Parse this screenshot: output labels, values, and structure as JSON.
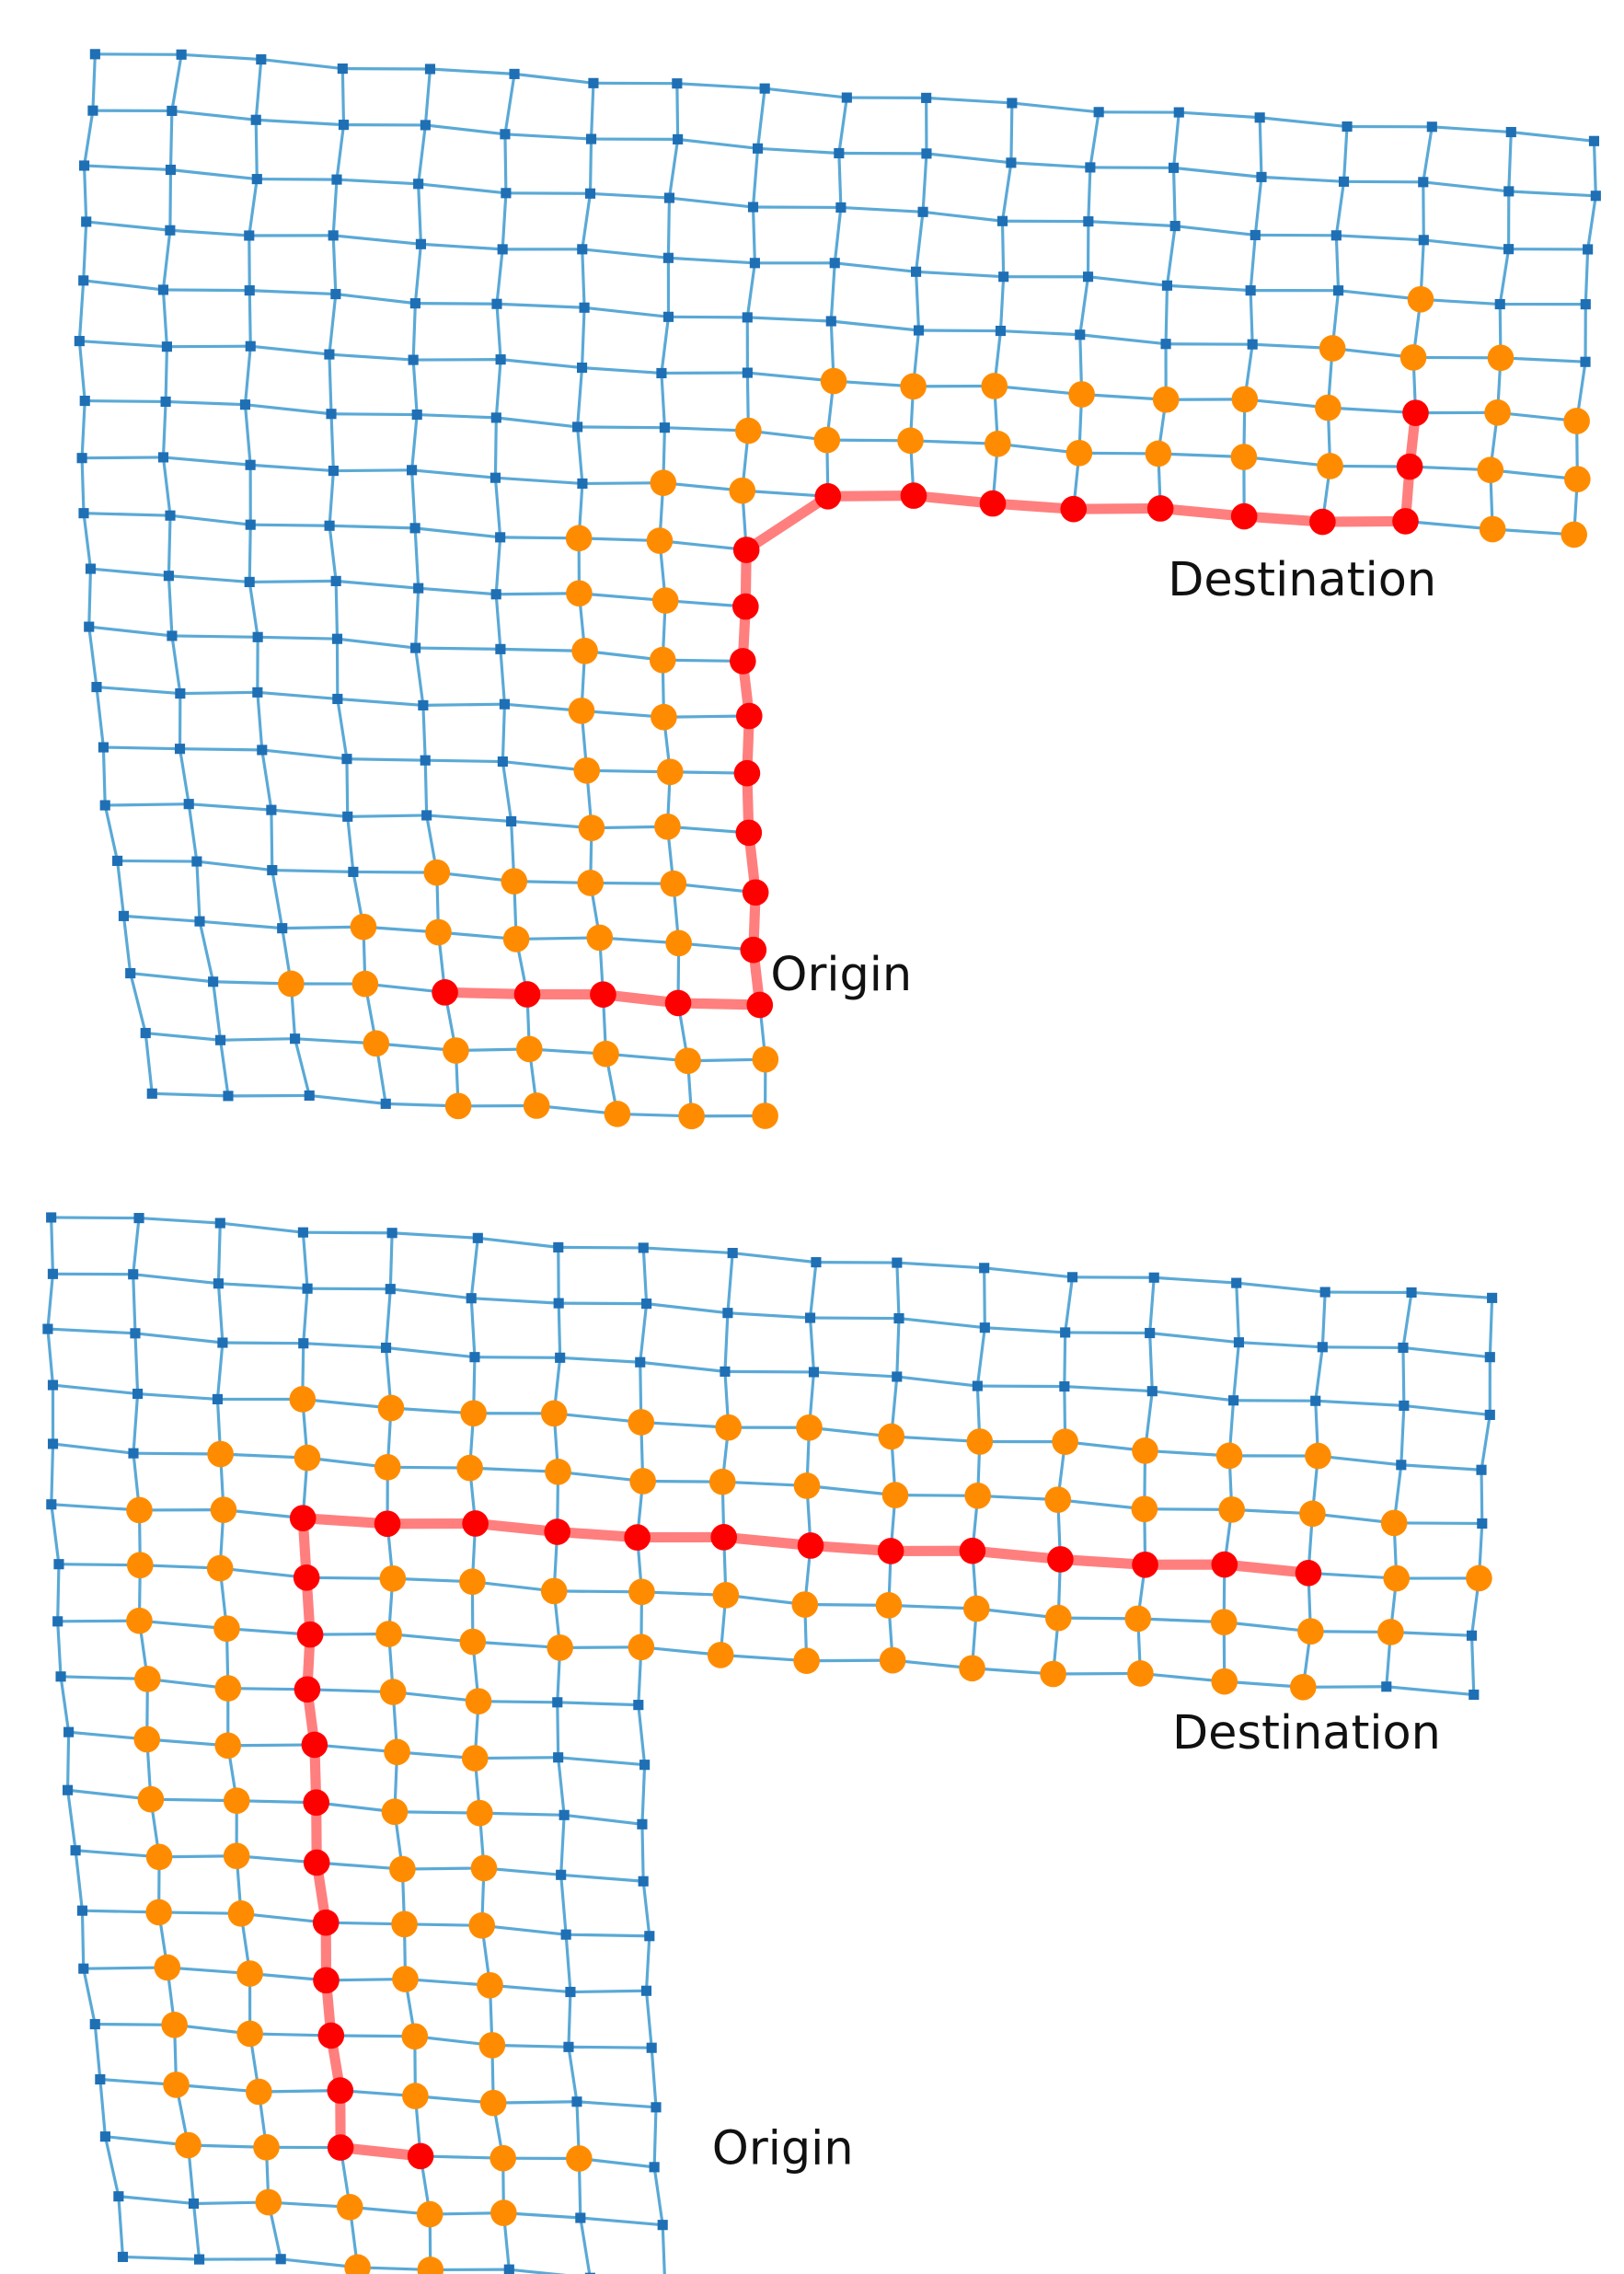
{
  "panels": [
    {
      "destination_label": "Destination",
      "origin_label": "Origin"
    },
    {
      "destination_label": "Destination",
      "origin_label": "Origin"
    }
  ]
}
